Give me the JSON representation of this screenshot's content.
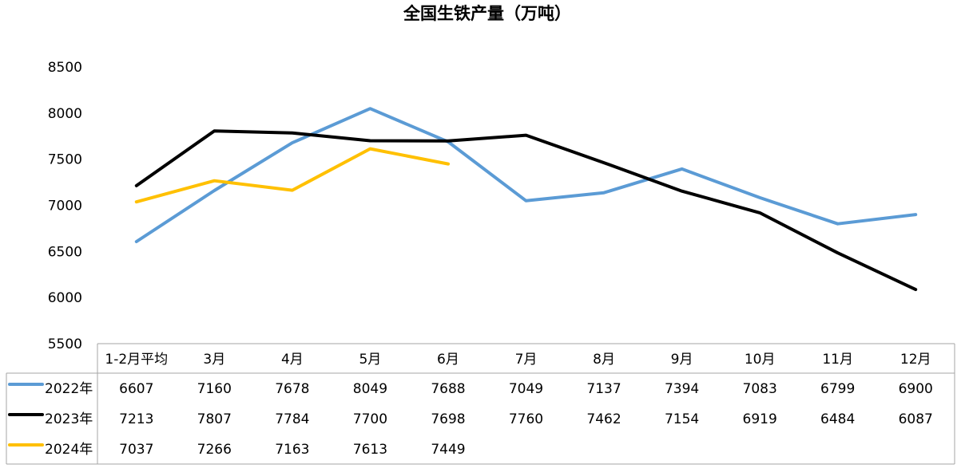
{
  "chart_data": {
    "type": "line",
    "title": "全国生铁产量（万吨）",
    "xlabel": "",
    "ylabel": "",
    "ylim": [
      5500,
      8500
    ],
    "yticks": [
      5500,
      6000,
      6500,
      7000,
      7500,
      8000,
      8500
    ],
    "grid": false,
    "legend": "table-left",
    "categories": [
      "1-2月平均",
      "3月",
      "4月",
      "5月",
      "6月",
      "7月",
      "8月",
      "9月",
      "10月",
      "11月",
      "12月"
    ],
    "series": [
      {
        "name": "2022年",
        "color": "#5B9BD5",
        "values": [
          6607,
          7160,
          7678,
          8049,
          7688,
          7049,
          7137,
          7394,
          7083,
          6799,
          6900
        ]
      },
      {
        "name": "2023年",
        "color": "#000000",
        "values": [
          7213,
          7807,
          7784,
          7700,
          7698,
          7760,
          7462,
          7154,
          6919,
          6484,
          6087
        ]
      },
      {
        "name": "2024年",
        "color": "#FFC000",
        "values": [
          7037,
          7266,
          7163,
          7613,
          7449,
          null,
          null,
          null,
          null,
          null,
          null
        ]
      }
    ]
  }
}
